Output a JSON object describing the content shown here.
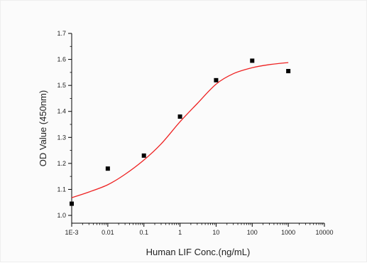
{
  "chart_data": {
    "type": "scatter",
    "title": "",
    "xlabel": "Human LIF Conc.(ng/mL)",
    "ylabel": "OD Value (450nm)",
    "xscale": "log",
    "xlim": [
      0.001,
      10000
    ],
    "ylim": [
      0.97,
      1.7
    ],
    "x_ticks": [
      {
        "value": 0.001,
        "label": "1E-3"
      },
      {
        "value": 0.01,
        "label": "0.01"
      },
      {
        "value": 0.1,
        "label": "0.1"
      },
      {
        "value": 1,
        "label": "1"
      },
      {
        "value": 10,
        "label": "10"
      },
      {
        "value": 100,
        "label": "100"
      },
      {
        "value": 1000,
        "label": "1000"
      },
      {
        "value": 10000,
        "label": "10000"
      }
    ],
    "y_ticks": [
      {
        "value": 1.0,
        "label": "1.0"
      },
      {
        "value": 1.1,
        "label": "1.1"
      },
      {
        "value": 1.2,
        "label": "1.2"
      },
      {
        "value": 1.3,
        "label": "1.3"
      },
      {
        "value": 1.4,
        "label": "1.4"
      },
      {
        "value": 1.5,
        "label": "1.5"
      },
      {
        "value": 1.6,
        "label": "1.6"
      },
      {
        "value": 1.7,
        "label": "1.7"
      }
    ],
    "series": [
      {
        "type": "scatter",
        "marker": "square",
        "color": "#000000",
        "points": [
          {
            "x": 0.001,
            "y": 1.045
          },
          {
            "x": 0.01,
            "y": 1.18
          },
          {
            "x": 0.1,
            "y": 1.23
          },
          {
            "x": 1,
            "y": 1.38
          },
          {
            "x": 10,
            "y": 1.52
          },
          {
            "x": 100,
            "y": 1.595
          },
          {
            "x": 1000,
            "y": 1.555
          }
        ]
      },
      {
        "type": "line",
        "style": "fit-curve",
        "color": "#ee2222",
        "points": [
          {
            "x": 0.001,
            "y": 1.068
          },
          {
            "x": 0.003,
            "y": 1.09
          },
          {
            "x": 0.01,
            "y": 1.118
          },
          {
            "x": 0.03,
            "y": 1.158
          },
          {
            "x": 0.1,
            "y": 1.213
          },
          {
            "x": 0.3,
            "y": 1.275
          },
          {
            "x": 1,
            "y": 1.36
          },
          {
            "x": 3,
            "y": 1.43
          },
          {
            "x": 10,
            "y": 1.505
          },
          {
            "x": 30,
            "y": 1.545
          },
          {
            "x": 100,
            "y": 1.568
          },
          {
            "x": 300,
            "y": 1.58
          },
          {
            "x": 1000,
            "y": 1.588
          }
        ]
      }
    ],
    "grid": false,
    "legend": "none"
  }
}
